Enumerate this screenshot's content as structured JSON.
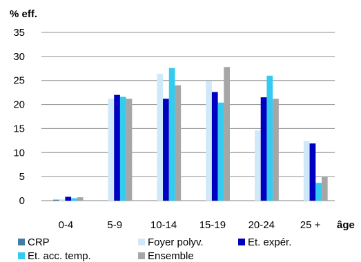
{
  "chart_data": {
    "type": "bar",
    "ylabel": "% eff.",
    "xlabel": "âge",
    "categories": [
      "0-4",
      "5-9",
      "10-14",
      "15-19",
      "20-24",
      "25 +"
    ],
    "ylim": [
      0,
      35
    ],
    "yticks": [
      0,
      5,
      10,
      15,
      20,
      25,
      30,
      35
    ],
    "grid": true,
    "legend_position": "bottom",
    "series": [
      {
        "name": "CRP",
        "color": "#3f7fa6",
        "values": [
          0.2,
          0,
          0,
          0,
          0,
          0
        ]
      },
      {
        "name": "Foyer polyv.",
        "color": "#cfe9f8",
        "values": [
          0.3,
          21.2,
          26.4,
          24.9,
          14.6,
          12.4
        ]
      },
      {
        "name": "Et. expér.",
        "color": "#0000c0",
        "values": [
          0.8,
          22.0,
          21.2,
          22.6,
          21.5,
          11.9
        ]
      },
      {
        "name": "Et. acc. temp.",
        "color": "#33ccf0",
        "values": [
          0.5,
          21.6,
          27.6,
          20.4,
          26.0,
          3.7
        ]
      },
      {
        "name": "Ensemble",
        "color": "#a6a6a6",
        "values": [
          0.7,
          21.2,
          24.0,
          27.8,
          21.2,
          4.9
        ]
      }
    ]
  }
}
